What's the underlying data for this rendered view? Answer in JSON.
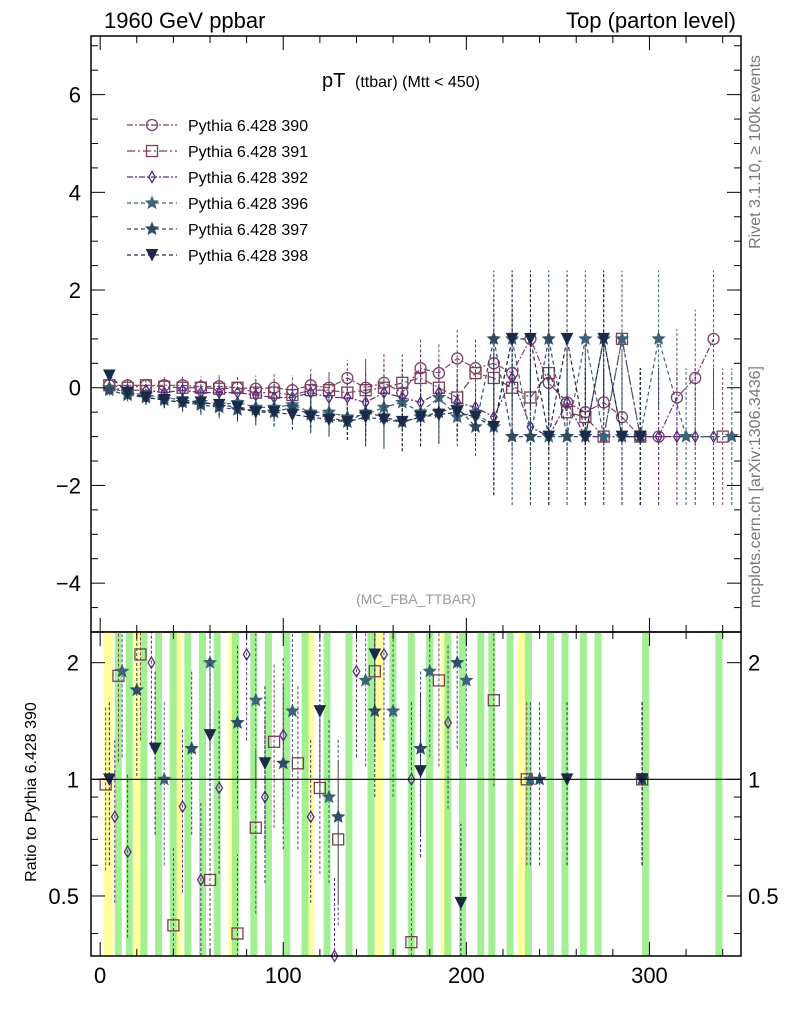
{
  "header": {
    "left": "1960 GeV ppbar",
    "right": "Top (parton level)"
  },
  "side_text": {
    "rivet": "Rivet 3.1.10, ≥ 100k events",
    "mcplots": "mcplots.cern.ch [arXiv:1306.3436]"
  },
  "chart_data": [
    {
      "type": "line",
      "title_main": "pT",
      "title_sub": "(ttbar) (Mtt < 450)",
      "analysis_label": "(MC_FBA_TTBAR)",
      "xlim": [
        -5,
        350
      ],
      "ylim": [
        -5,
        7.2
      ],
      "yticks": [
        -4,
        -2,
        0,
        2,
        4,
        6
      ],
      "xticks": [
        0,
        100,
        200,
        300
      ],
      "series": [
        {
          "name": "Pythia 6.428 390",
          "marker": "circle",
          "color": "#7b3f6e",
          "dash": "6,2,2,2",
          "x": [
            5,
            15,
            25,
            35,
            45,
            55,
            65,
            75,
            85,
            95,
            105,
            115,
            125,
            135,
            145,
            155,
            165,
            175,
            185,
            195,
            205,
            215,
            225,
            235,
            245,
            255,
            265,
            275,
            285,
            295,
            305,
            315,
            325,
            335
          ],
          "y": [
            0.05,
            0.05,
            0.05,
            0.05,
            0.05,
            0.02,
            0.03,
            0.0,
            -0.02,
            0.0,
            -0.05,
            0.05,
            0.0,
            0.2,
            0.0,
            0.1,
            -0.1,
            0.4,
            0.3,
            0.6,
            0.4,
            0.5,
            0.3,
            1.0,
            0.1,
            -0.3,
            -0.5,
            -0.3,
            -0.6,
            -1.0,
            -1.0,
            -0.2,
            0.2,
            1.0
          ]
        },
        {
          "name": "Pythia 6.428 391",
          "marker": "square",
          "color": "#7b3f55",
          "dash": "8,3,2,3",
          "x": [
            5,
            15,
            25,
            35,
            45,
            55,
            65,
            75,
            85,
            95,
            105,
            115,
            125,
            135,
            145,
            155,
            165,
            175,
            185,
            195,
            205,
            215,
            225,
            235,
            245,
            255,
            265,
            275,
            285,
            295,
            340
          ],
          "y": [
            0.05,
            0.0,
            0.05,
            0.02,
            0.0,
            0.0,
            -0.02,
            0.0,
            -0.1,
            -0.1,
            -0.15,
            -0.05,
            -0.05,
            -0.1,
            -0.05,
            0.0,
            0.1,
            0.2,
            0.0,
            -0.2,
            0.3,
            0.2,
            0.0,
            -0.2,
            0.3,
            -0.5,
            -0.6,
            -1.0,
            1.0,
            -1.0,
            -1.0
          ]
        },
        {
          "name": "Pythia 6.428 392",
          "marker": "diamond",
          "color": "#5b2d80",
          "dash": "6,2,2,2",
          "x": [
            5,
            15,
            25,
            35,
            45,
            55,
            65,
            75,
            85,
            95,
            105,
            115,
            125,
            135,
            145,
            155,
            165,
            175,
            185,
            195,
            205,
            215,
            225,
            235,
            245,
            255,
            265,
            275,
            285,
            295,
            305,
            315,
            325,
            335
          ],
          "y": [
            0.0,
            -0.05,
            -0.05,
            -0.1,
            -0.05,
            -0.1,
            -0.1,
            -0.1,
            -0.15,
            -0.2,
            -0.2,
            -0.1,
            -0.2,
            -0.2,
            -0.3,
            -0.1,
            -0.2,
            -0.3,
            -0.1,
            -0.3,
            -0.4,
            -0.6,
            0.2,
            -0.8,
            -1.0,
            -0.3,
            -1.0,
            -1.0,
            -1.0,
            -1.0,
            -1.0,
            -1.0,
            -1.0,
            -1.0
          ]
        },
        {
          "name": "Pythia 6.428 396",
          "marker": "star",
          "color": "#3d6378",
          "dash": "4,3",
          "x": [
            5,
            15,
            25,
            35,
            45,
            55,
            65,
            75,
            85,
            95,
            105,
            115,
            125,
            135,
            145,
            155,
            165,
            175,
            185,
            195,
            205,
            215,
            225,
            235,
            245,
            255,
            265,
            275,
            285,
            295,
            305,
            320,
            345
          ],
          "y": [
            0.0,
            -0.1,
            -0.15,
            -0.2,
            -0.25,
            -0.3,
            -0.35,
            -0.3,
            -0.4,
            -0.4,
            -0.35,
            -0.5,
            -0.5,
            -0.6,
            -0.55,
            -0.4,
            -0.3,
            -0.5,
            -0.2,
            -0.6,
            -0.5,
            -0.8,
            1.0,
            -1.0,
            -1.0,
            -1.0,
            1.0,
            -1.0,
            1.0,
            -1.0,
            1.0,
            -1.0,
            -1.0
          ]
        },
        {
          "name": "Pythia 6.428 397",
          "marker": "star",
          "color": "#2f4c63",
          "dash": "4,3",
          "x": [
            5,
            15,
            25,
            35,
            45,
            55,
            65,
            75,
            85,
            95,
            105,
            115,
            125,
            135,
            145,
            155,
            165,
            175,
            185,
            195,
            205,
            215,
            225,
            235,
            245,
            255,
            265,
            275,
            285,
            295
          ],
          "y": [
            -0.05,
            -0.15,
            -0.2,
            -0.25,
            -0.3,
            -0.35,
            -0.4,
            -0.45,
            -0.45,
            -0.5,
            -0.4,
            -0.55,
            -0.6,
            -0.7,
            -0.5,
            -0.6,
            -0.7,
            -0.6,
            -0.5,
            -0.4,
            -0.8,
            1.0,
            -1.0,
            -1.0,
            1.0,
            -1.0,
            -1.0,
            1.0,
            -1.0,
            -1.0
          ]
        },
        {
          "name": "Pythia 6.428 398",
          "marker": "triangle-down",
          "color": "#1c2a4a",
          "dash": "4,3",
          "x": [
            5,
            15,
            25,
            35,
            45,
            55,
            65,
            75,
            85,
            95,
            105,
            115,
            125,
            135,
            145,
            155,
            165,
            175,
            185,
            195,
            205,
            215,
            225,
            235,
            245,
            255,
            265,
            275,
            285,
            295
          ],
          "y": [
            0.25,
            -0.1,
            -0.2,
            -0.25,
            -0.3,
            -0.3,
            -0.35,
            -0.4,
            -0.5,
            -0.5,
            -0.55,
            -0.6,
            -0.65,
            -0.7,
            -0.6,
            -0.65,
            -0.7,
            -0.6,
            -0.55,
            -0.5,
            -0.6,
            -0.8,
            1.0,
            1.0,
            -1.0,
            1.0,
            -1.0,
            1.0,
            -1.0,
            -1.0
          ]
        }
      ]
    },
    {
      "type": "line",
      "ylabel": "Ratio to Pythia 6.428 390",
      "ylog": true,
      "ylim": [
        0.35,
        2.4
      ],
      "yticks": [
        0.5,
        1,
        2
      ],
      "xticks": [
        0,
        100,
        200,
        300
      ],
      "reference": 1,
      "band_green_x": [
        8,
        14,
        22,
        30,
        38,
        46,
        54,
        62,
        72,
        82,
        90,
        100,
        110,
        122,
        134,
        146,
        158,
        168,
        178,
        188,
        196,
        206,
        212,
        222,
        232,
        244,
        252,
        262,
        270,
        296,
        336
      ],
      "band_yellow_x": [
        2,
        18,
        40,
        70,
        112,
        150,
        186,
        228
      ],
      "series": [
        {
          "name": "Pythia 6.428 391",
          "marker": "square",
          "color": "#7b3f55",
          "x": [
            3,
            10,
            22,
            40,
            60,
            75,
            85,
            95,
            108,
            120,
            130,
            150,
            170,
            185,
            215,
            233,
            296
          ],
          "y": [
            0.97,
            1.85,
            2.1,
            0.42,
            0.55,
            0.4,
            0.75,
            1.25,
            1.1,
            0.95,
            0.7,
            1.9,
            0.38,
            1.8,
            1.6,
            1.0,
            1.0
          ]
        },
        {
          "name": "Pythia 6.428 392",
          "marker": "diamond",
          "color": "#5b2d80",
          "x": [
            8,
            15,
            28,
            45,
            55,
            65,
            80,
            90,
            100,
            115,
            128,
            140,
            155,
            170,
            190,
            235
          ],
          "y": [
            0.8,
            0.65,
            2.0,
            0.85,
            0.55,
            0.95,
            2.1,
            0.9,
            1.3,
            0.8,
            0.35,
            1.9,
            2.1,
            1.0,
            1.4,
            1.0
          ]
        },
        {
          "name": "Pythia 6.428 396",
          "marker": "star",
          "color": "#3d6378",
          "x": [
            12,
            35,
            60,
            85,
            105,
            125,
            145,
            160,
            180,
            200,
            235,
            296
          ],
          "y": [
            1.9,
            1.0,
            2.0,
            1.6,
            1.5,
            0.9,
            1.8,
            1.5,
            1.9,
            1.8,
            1.0,
            1.0
          ]
        },
        {
          "name": "Pythia 6.428 397",
          "marker": "star",
          "color": "#2f4c63",
          "x": [
            20,
            50,
            75,
            100,
            130,
            150,
            175,
            195,
            240,
            296
          ],
          "y": [
            1.7,
            1.2,
            1.4,
            1.1,
            0.8,
            1.5,
            1.2,
            2.0,
            1.0,
            1.0
          ]
        },
        {
          "name": "Pythia 6.428 398",
          "marker": "triangle-down",
          "color": "#1c2a4a",
          "x": [
            5,
            30,
            60,
            90,
            120,
            150,
            175,
            197,
            255,
            296
          ],
          "y": [
            1.0,
            1.2,
            1.3,
            1.1,
            1.5,
            2.1,
            1.05,
            0.48,
            1.0,
            1.0
          ]
        }
      ]
    }
  ]
}
